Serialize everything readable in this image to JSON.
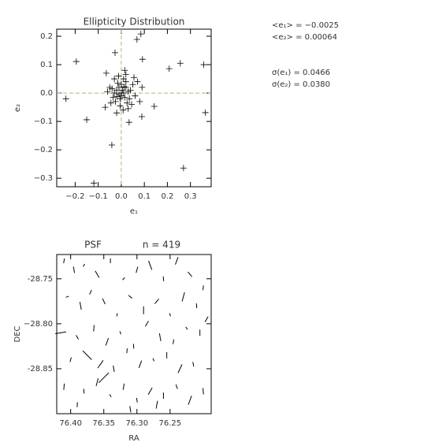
{
  "chart_data": [
    {
      "type": "scatter",
      "title": "Ellipticity Distribution",
      "xlabel": "e₁",
      "ylabel": "e₂",
      "color": "#000000",
      "zero_line_color": "#b8b860",
      "xlim": [
        -0.28,
        0.39
      ],
      "ylim": [
        -0.33,
        0.225
      ],
      "xticks": [
        {
          "value": -0.2,
          "label": "−0.2"
        },
        {
          "value": -0.1,
          "label": "−0.1"
        },
        {
          "value": 0,
          "label": "0.0"
        },
        0.1,
        0.2,
        0.3
      ],
      "yticks": [
        0.2,
        0.1,
        {
          "value": 0,
          "label": "0.0"
        },
        {
          "value": -0.1,
          "label": "−0.1"
        },
        {
          "value": -0.2,
          "label": "−0.2"
        },
        {
          "value": -0.3,
          "label": "−0.3"
        }
      ],
      "x": [
        -0.01,
        0,
        0.01,
        -0.02,
        0.02,
        -0.005,
        0.015,
        -0.03,
        0.03,
        0,
        -0.015,
        0.02,
        -0.025,
        0.025,
        0.005,
        -0.01,
        0.04,
        -0.04,
        0.01,
        -0.005,
        0.035,
        -0.035,
        0,
        0.012,
        -0.018,
        0.05,
        -0.05,
        0.045,
        -0.045,
        0.008,
        -0.012,
        0.06,
        -0.06,
        0.02,
        0.03,
        -0.03,
        0.07,
        -0.02,
        0.055,
        -0.07,
        0.08,
        0.015,
        -0.065,
        0.09,
        -0.195,
        -0.027,
        0.068,
        0.085,
        0.358,
        0.256,
        0.208,
        0.092,
        -0.15,
        -0.041,
        -0.119,
        0.27,
        0.365,
        -0.24,
        0.143,
        0.089,
        0.034
      ],
      "y": [
        0.02,
        -0.01,
        0,
        0.01,
        0.02,
        -0.02,
        -0.015,
        0,
        0.005,
        0.03,
        0.035,
        0.04,
        -0.03,
        -0.035,
        0.01,
        -0.005,
        0.01,
        0.015,
        0.05,
        -0.045,
        -0.02,
        -0.015,
        0,
        0.022,
        -0.012,
        0.03,
        0.02,
        -0.04,
        -0.035,
        -0.06,
        0.06,
        -0.01,
        0.005,
        0.065,
        -0.055,
        0.05,
        0.04,
        -0.07,
        0.055,
        -0.05,
        -0.03,
        0.08,
        0.07,
        0.02,
        0.111,
        0.142,
        0.189,
        0.208,
        0.1,
        0.105,
        0.086,
        0.119,
        -0.094,
        -0.183,
        -0.317,
        -0.264,
        -0.069,
        -0.02,
        -0.047,
        -0.083,
        -0.103
      ]
    },
    {
      "type": "whisker",
      "title": "PSF",
      "subtitle": "n = 419",
      "xlabel": "RA",
      "ylabel": "DEC",
      "color": "#000000",
      "xlim": [
        76.421,
        76.188
      ],
      "ylim": [
        -28.9,
        -28.723
      ],
      "xticks": [
        {
          "value": 76.4,
          "label": "76.40"
        },
        76.35,
        {
          "value": 76.3,
          "label": "76.30"
        },
        76.25
      ],
      "yticks": [
        -28.75,
        {
          "value": -28.8,
          "label": "−28.80"
        },
        -28.85
      ],
      "x": [
        76.41,
        76.395,
        76.38,
        76.36,
        76.34,
        76.32,
        76.3,
        76.28,
        76.26,
        76.24,
        76.22,
        76.2,
        76.405,
        76.385,
        76.37,
        76.35,
        76.33,
        76.31,
        76.29,
        76.27,
        76.25,
        76.23,
        76.21,
        76.195,
        76.415,
        76.39,
        76.365,
        76.345,
        76.325,
        76.305,
        76.285,
        76.265,
        76.245,
        76.225,
        76.205,
        76.4,
        76.375,
        76.355,
        76.335,
        76.315,
        76.295,
        76.275,
        76.255,
        76.235,
        76.215,
        76.41,
        76.38,
        76.36,
        76.34,
        76.32,
        76.3,
        76.28,
        76.26,
        76.24,
        76.22,
        76.2,
        76.39,
        76.35,
        76.31,
        76.27
      ],
      "y": [
        -28.73,
        -28.74,
        -28.735,
        -28.745,
        -28.73,
        -28.75,
        -28.74,
        -28.735,
        -28.75,
        -28.73,
        -28.745,
        -28.76,
        -28.77,
        -28.78,
        -28.765,
        -28.775,
        -28.79,
        -28.77,
        -28.785,
        -28.775,
        -28.79,
        -28.77,
        -28.78,
        -28.795,
        -28.81,
        -28.815,
        -28.805,
        -28.82,
        -28.81,
        -28.825,
        -28.8,
        -28.815,
        -28.82,
        -28.805,
        -28.81,
        -28.84,
        -28.835,
        -28.845,
        -28.85,
        -28.83,
        -28.845,
        -28.84,
        -28.835,
        -28.85,
        -28.845,
        -28.87,
        -28.875,
        -28.865,
        -28.88,
        -28.87,
        -28.885,
        -28.875,
        -28.88,
        -28.87,
        -28.885,
        -28.875,
        -28.89,
        -28.86,
        -28.895,
        -28.89
      ],
      "e": [
        0.03,
        0.04,
        0.02,
        0.05,
        0.03,
        0.02,
        0.04,
        0.06,
        0.03,
        0.05,
        0.04,
        0.03,
        0.02,
        0.05,
        0.03,
        0.04,
        0.02,
        0.03,
        0.05,
        0.04,
        0.02,
        0.06,
        0.03,
        0.04,
        0.07,
        0.03,
        0.04,
        0.05,
        0.02,
        0.03,
        0.04,
        0.05,
        0.03,
        0.02,
        0.04,
        0.03,
        0.08,
        0.06,
        0.04,
        0.03,
        0.05,
        0.02,
        0.04,
        0.06,
        0.03,
        0.04,
        0.03,
        0.05,
        0.02,
        0.04,
        0.03,
        0.05,
        0.04,
        0.03,
        0.06,
        0.04,
        0.03,
        0.09,
        0.04,
        0.05
      ],
      "theta": [
        80,
        100,
        60,
        120,
        90,
        45,
        75,
        110,
        95,
        70,
        130,
        85,
        20,
        100,
        65,
        115,
        80,
        140,
        90,
        50,
        105,
        75,
        95,
        60,
        10,
        120,
        85,
        70,
        110,
        95,
        60,
        100,
        80,
        125,
        90,
        75,
        135,
        55,
        100,
        85,
        70,
        110,
        90,
        65,
        100,
        85,
        95,
        75,
        120,
        80,
        100,
        60,
        90,
        110,
        70,
        95,
        85,
        45,
        100,
        80
      ]
    }
  ],
  "annotations": [
    "<e₁> = −0.0025",
    "<e₂> = 0.00064",
    "σ(e₁) = 0.0466",
    "σ(e₂) = 0.0380"
  ]
}
